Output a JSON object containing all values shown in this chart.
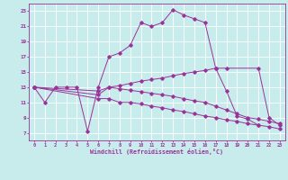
{
  "xlabel": "Windchill (Refroidissement éolien,°C)",
  "background_color": "#c8ecec",
  "grid_color": "#ffffff",
  "line_color": "#993399",
  "xlim": [
    -0.5,
    23.5
  ],
  "ylim": [
    6.0,
    24.0
  ],
  "xticks": [
    0,
    1,
    2,
    3,
    4,
    5,
    6,
    7,
    8,
    9,
    10,
    11,
    12,
    13,
    14,
    15,
    16,
    17,
    18,
    19,
    20,
    21,
    22,
    23
  ],
  "yticks": [
    7,
    9,
    11,
    13,
    15,
    17,
    19,
    21,
    23
  ],
  "line1_x": [
    0,
    1,
    2,
    3,
    4,
    5,
    6,
    7,
    8,
    9,
    10,
    11,
    12,
    13,
    14,
    15,
    16,
    17,
    18,
    19,
    20,
    21
  ],
  "line1_y": [
    13,
    11,
    13,
    13,
    13,
    7.2,
    13,
    17,
    17.5,
    18.5,
    21.5,
    21,
    21.5,
    23.2,
    22.5,
    22,
    21.5,
    15.5,
    12.5,
    9.2,
    8.8,
    8.0
  ],
  "line2_x": [
    0,
    6,
    7,
    8,
    9,
    10,
    11,
    12,
    13,
    14,
    15,
    16,
    17,
    18,
    21,
    22,
    23
  ],
  "line2_y": [
    13,
    12,
    13,
    13.2,
    13.5,
    13.8,
    14,
    14.2,
    14.5,
    14.8,
    15,
    15.2,
    15.5,
    15.5,
    15.5,
    9.0,
    8.0
  ],
  "line3_x": [
    0,
    6,
    7,
    8,
    9,
    10,
    11,
    12,
    13,
    14,
    15,
    16,
    17,
    18,
    19,
    20,
    21,
    22,
    23
  ],
  "line3_y": [
    13,
    11.5,
    11.5,
    11.0,
    11.0,
    10.8,
    10.5,
    10.3,
    10.0,
    9.8,
    9.5,
    9.2,
    9.0,
    8.7,
    8.5,
    8.2,
    8.0,
    7.8,
    7.5
  ],
  "line4_x": [
    0,
    6,
    7,
    8,
    9,
    10,
    11,
    12,
    13,
    14,
    15,
    16,
    17,
    18,
    19,
    20,
    21,
    22,
    23
  ],
  "line4_y": [
    13,
    12.5,
    13,
    12.8,
    12.6,
    12.4,
    12.2,
    12.0,
    11.8,
    11.5,
    11.2,
    11.0,
    10.5,
    10.0,
    9.5,
    9.0,
    8.8,
    8.5,
    8.2
  ]
}
